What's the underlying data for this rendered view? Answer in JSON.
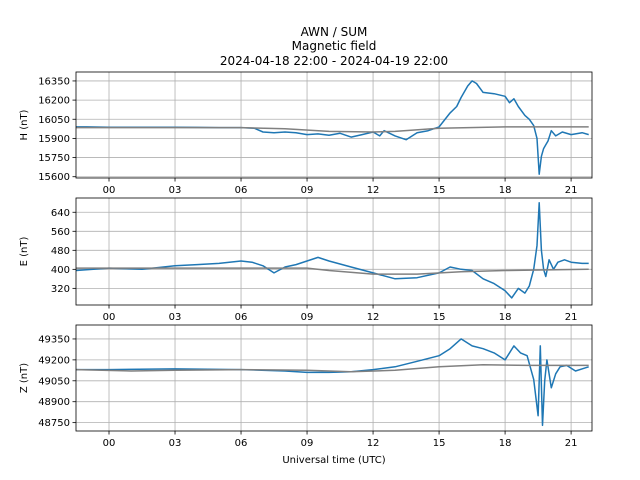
{
  "title": {
    "line1": "AWN / SUM",
    "line2": "Magnetic field",
    "line3": "2024-04-18 22:00 - 2024-04-19 22:00"
  },
  "xlabel": "Universal time (UTC)",
  "colors": {
    "data": "#1f77b4",
    "baseline": "#808080",
    "grid": "#b0b0b0"
  },
  "chart_data": [
    {
      "type": "line",
      "ylabel": "H (nT)",
      "xlim": [
        -1.5,
        21.95
      ],
      "ylim": [
        15590,
        16420
      ],
      "xticks": [
        0,
        3,
        6,
        9,
        12,
        15,
        18,
        21
      ],
      "xtick_labels": [
        "00",
        "03",
        "06",
        "09",
        "12",
        "15",
        "18",
        "21"
      ],
      "yticks": [
        15600,
        15750,
        15900,
        16050,
        16200,
        16350
      ],
      "grid": true,
      "series": [
        {
          "role": "data",
          "x": [
            -1.5,
            -1,
            0,
            1,
            2,
            3,
            4,
            5,
            6,
            6.6,
            7,
            7.5,
            8,
            8.5,
            9,
            9.5,
            10,
            10.5,
            11,
            11.5,
            12,
            12.3,
            12.5,
            13,
            13.5,
            14,
            14.5,
            15,
            15.5,
            15.8,
            16,
            16.3,
            16.5,
            16.7,
            17,
            17.5,
            18,
            18.2,
            18.4,
            18.6,
            18.9,
            19.1,
            19.3,
            19.45,
            19.55,
            19.65,
            19.75,
            19.85,
            19.95,
            20.1,
            20.3,
            20.6,
            21,
            21.5,
            21.8
          ],
          "y": [
            15990,
            15990,
            15987,
            15987,
            15988,
            15988,
            15986,
            15985,
            15985,
            15980,
            15950,
            15945,
            15950,
            15945,
            15930,
            15935,
            15925,
            15940,
            15910,
            15930,
            15950,
            15920,
            15960,
            15920,
            15890,
            15945,
            15960,
            15990,
            16100,
            16150,
            16220,
            16310,
            16350,
            16330,
            16260,
            16250,
            16230,
            16180,
            16210,
            16150,
            16080,
            16050,
            16000,
            15900,
            15620,
            15760,
            15820,
            15850,
            15880,
            15960,
            15920,
            15950,
            15930,
            15945,
            15930
          ]
        },
        {
          "role": "baseline",
          "x": [
            -1.5,
            3,
            6,
            8,
            10,
            12,
            13,
            15,
            18,
            21.8
          ],
          "y": [
            15985,
            15985,
            15985,
            15975,
            15955,
            15950,
            15955,
            15980,
            15990,
            15990
          ]
        }
      ]
    },
    {
      "type": "line",
      "ylabel": "E (nT)",
      "xlim": [
        -1.5,
        21.95
      ],
      "ylim": [
        250,
        700
      ],
      "xticks": [
        0,
        3,
        6,
        9,
        12,
        15,
        18,
        21
      ],
      "xtick_labels": [
        "00",
        "03",
        "06",
        "09",
        "12",
        "15",
        "18",
        "21"
      ],
      "yticks": [
        320,
        400,
        480,
        560,
        640
      ],
      "grid": true,
      "series": [
        {
          "role": "data",
          "x": [
            -1.5,
            0,
            1.5,
            2,
            3,
            4,
            5,
            6,
            6.5,
            7,
            7.5,
            8,
            8.5,
            9,
            9.5,
            10,
            11,
            12,
            13,
            14,
            15,
            15.5,
            16,
            16.5,
            17,
            17.5,
            18,
            18.3,
            18.6,
            18.9,
            19.1,
            19.3,
            19.45,
            19.55,
            19.65,
            19.75,
            19.85,
            20,
            20.2,
            20.4,
            20.7,
            21,
            21.5,
            21.8
          ],
          "y": [
            395,
            405,
            400,
            405,
            415,
            420,
            425,
            435,
            430,
            415,
            385,
            410,
            420,
            435,
            450,
            435,
            410,
            385,
            360,
            365,
            385,
            410,
            400,
            395,
            360,
            340,
            310,
            280,
            320,
            300,
            330,
            400,
            500,
            680,
            480,
            400,
            370,
            440,
            400,
            430,
            440,
            430,
            425,
            425
          ]
        },
        {
          "role": "baseline",
          "x": [
            -1.5,
            0,
            3,
            6,
            9,
            10,
            12,
            14,
            16,
            18,
            21.8
          ],
          "y": [
            405,
            405,
            405,
            405,
            405,
            395,
            380,
            380,
            390,
            395,
            400
          ]
        }
      ]
    },
    {
      "type": "line",
      "ylabel": "Z (nT)",
      "xlim": [
        -1.5,
        21.95
      ],
      "ylim": [
        48690,
        49450
      ],
      "xticks": [
        0,
        3,
        6,
        9,
        12,
        15,
        18,
        21
      ],
      "xtick_labels": [
        "00",
        "03",
        "06",
        "09",
        "12",
        "15",
        "18",
        "21"
      ],
      "yticks": [
        48750,
        48900,
        49050,
        49200,
        49350
      ],
      "grid": true,
      "series": [
        {
          "role": "data",
          "x": [
            -1.5,
            0,
            3,
            6,
            8,
            9,
            10,
            11,
            12,
            13,
            14,
            15,
            15.5,
            16,
            16.5,
            17,
            17.5,
            18,
            18.4,
            18.7,
            19,
            19.3,
            19.5,
            19.6,
            19.7,
            19.8,
            19.9,
            20.1,
            20.3,
            20.5,
            20.8,
            21.2,
            21.6,
            21.8
          ],
          "y": [
            49130,
            49130,
            49135,
            49130,
            49120,
            49110,
            49110,
            49115,
            49130,
            49150,
            49190,
            49230,
            49280,
            49350,
            49300,
            49280,
            49250,
            49200,
            49300,
            49250,
            49230,
            49060,
            48800,
            49300,
            48730,
            49050,
            49200,
            49000,
            49100,
            49150,
            49160,
            49120,
            49140,
            49150
          ]
        },
        {
          "role": "baseline",
          "x": [
            -1.5,
            1,
            3,
            6,
            9,
            11,
            13,
            15,
            17,
            19,
            21.8
          ],
          "y": [
            49130,
            49120,
            49125,
            49130,
            49125,
            49115,
            49125,
            49150,
            49165,
            49160,
            49160
          ]
        }
      ]
    }
  ]
}
